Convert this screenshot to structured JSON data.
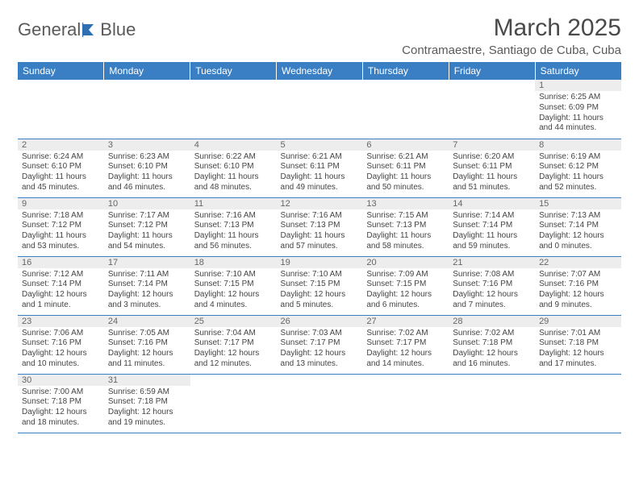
{
  "brand": {
    "word1": "General",
    "word2": "Blue",
    "logo_color": "#2f6fb3"
  },
  "title": "March 2025",
  "location": "Contramaestre, Santiago de Cuba, Cuba",
  "colors": {
    "header_bg": "#3a7fc4",
    "header_fg": "#ffffff",
    "rule": "#3a7fc4",
    "daynum_bg": "#ededed"
  },
  "weekdays": [
    "Sunday",
    "Monday",
    "Tuesday",
    "Wednesday",
    "Thursday",
    "Friday",
    "Saturday"
  ],
  "weeks": [
    [
      null,
      null,
      null,
      null,
      null,
      null,
      {
        "n": "1",
        "sr": "6:25 AM",
        "ss": "6:09 PM",
        "dl": "11 hours and 44 minutes."
      }
    ],
    [
      {
        "n": "2",
        "sr": "6:24 AM",
        "ss": "6:10 PM",
        "dl": "11 hours and 45 minutes."
      },
      {
        "n": "3",
        "sr": "6:23 AM",
        "ss": "6:10 PM",
        "dl": "11 hours and 46 minutes."
      },
      {
        "n": "4",
        "sr": "6:22 AM",
        "ss": "6:10 PM",
        "dl": "11 hours and 48 minutes."
      },
      {
        "n": "5",
        "sr": "6:21 AM",
        "ss": "6:11 PM",
        "dl": "11 hours and 49 minutes."
      },
      {
        "n": "6",
        "sr": "6:21 AM",
        "ss": "6:11 PM",
        "dl": "11 hours and 50 minutes."
      },
      {
        "n": "7",
        "sr": "6:20 AM",
        "ss": "6:11 PM",
        "dl": "11 hours and 51 minutes."
      },
      {
        "n": "8",
        "sr": "6:19 AM",
        "ss": "6:12 PM",
        "dl": "11 hours and 52 minutes."
      }
    ],
    [
      {
        "n": "9",
        "sr": "7:18 AM",
        "ss": "7:12 PM",
        "dl": "11 hours and 53 minutes."
      },
      {
        "n": "10",
        "sr": "7:17 AM",
        "ss": "7:12 PM",
        "dl": "11 hours and 54 minutes."
      },
      {
        "n": "11",
        "sr": "7:16 AM",
        "ss": "7:13 PM",
        "dl": "11 hours and 56 minutes."
      },
      {
        "n": "12",
        "sr": "7:16 AM",
        "ss": "7:13 PM",
        "dl": "11 hours and 57 minutes."
      },
      {
        "n": "13",
        "sr": "7:15 AM",
        "ss": "7:13 PM",
        "dl": "11 hours and 58 minutes."
      },
      {
        "n": "14",
        "sr": "7:14 AM",
        "ss": "7:14 PM",
        "dl": "11 hours and 59 minutes."
      },
      {
        "n": "15",
        "sr": "7:13 AM",
        "ss": "7:14 PM",
        "dl": "12 hours and 0 minutes."
      }
    ],
    [
      {
        "n": "16",
        "sr": "7:12 AM",
        "ss": "7:14 PM",
        "dl": "12 hours and 1 minute."
      },
      {
        "n": "17",
        "sr": "7:11 AM",
        "ss": "7:14 PM",
        "dl": "12 hours and 3 minutes."
      },
      {
        "n": "18",
        "sr": "7:10 AM",
        "ss": "7:15 PM",
        "dl": "12 hours and 4 minutes."
      },
      {
        "n": "19",
        "sr": "7:10 AM",
        "ss": "7:15 PM",
        "dl": "12 hours and 5 minutes."
      },
      {
        "n": "20",
        "sr": "7:09 AM",
        "ss": "7:15 PM",
        "dl": "12 hours and 6 minutes."
      },
      {
        "n": "21",
        "sr": "7:08 AM",
        "ss": "7:16 PM",
        "dl": "12 hours and 7 minutes."
      },
      {
        "n": "22",
        "sr": "7:07 AM",
        "ss": "7:16 PM",
        "dl": "12 hours and 9 minutes."
      }
    ],
    [
      {
        "n": "23",
        "sr": "7:06 AM",
        "ss": "7:16 PM",
        "dl": "12 hours and 10 minutes."
      },
      {
        "n": "24",
        "sr": "7:05 AM",
        "ss": "7:16 PM",
        "dl": "12 hours and 11 minutes."
      },
      {
        "n": "25",
        "sr": "7:04 AM",
        "ss": "7:17 PM",
        "dl": "12 hours and 12 minutes."
      },
      {
        "n": "26",
        "sr": "7:03 AM",
        "ss": "7:17 PM",
        "dl": "12 hours and 13 minutes."
      },
      {
        "n": "27",
        "sr": "7:02 AM",
        "ss": "7:17 PM",
        "dl": "12 hours and 14 minutes."
      },
      {
        "n": "28",
        "sr": "7:02 AM",
        "ss": "7:18 PM",
        "dl": "12 hours and 16 minutes."
      },
      {
        "n": "29",
        "sr": "7:01 AM",
        "ss": "7:18 PM",
        "dl": "12 hours and 17 minutes."
      }
    ],
    [
      {
        "n": "30",
        "sr": "7:00 AM",
        "ss": "7:18 PM",
        "dl": "12 hours and 18 minutes."
      },
      {
        "n": "31",
        "sr": "6:59 AM",
        "ss": "7:18 PM",
        "dl": "12 hours and 19 minutes."
      },
      null,
      null,
      null,
      null,
      null
    ]
  ],
  "labels": {
    "sunrise": "Sunrise: ",
    "sunset": "Sunset: ",
    "daylight": "Daylight: "
  }
}
